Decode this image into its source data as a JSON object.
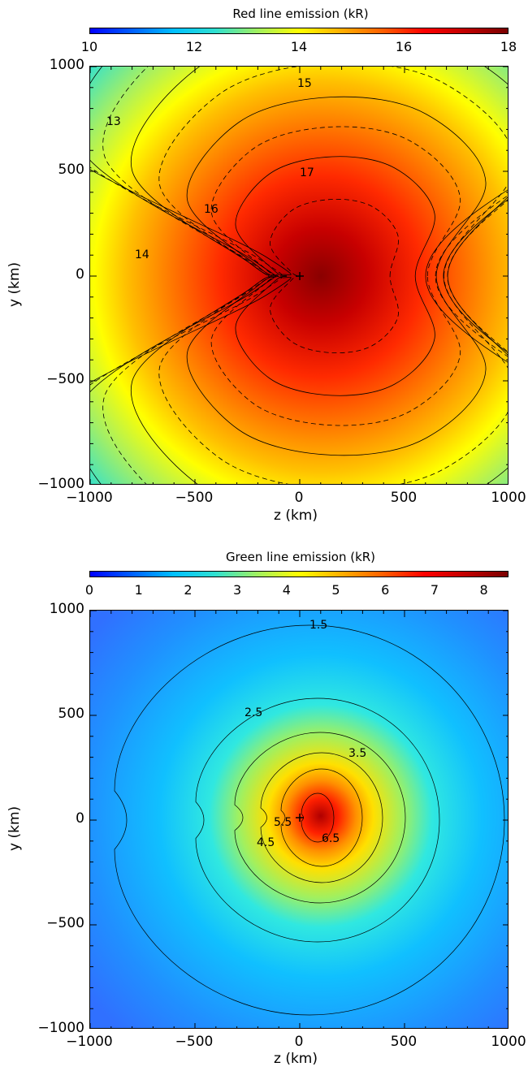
{
  "chart_data": [
    {
      "type": "heatmap",
      "title": "Red line emission (kR)",
      "xlabel": "z (km)",
      "ylabel": "y (km)",
      "xlim": [
        -1000,
        1000
      ],
      "ylim": [
        -1000,
        1000
      ],
      "colorbar_range": [
        10,
        18
      ],
      "colorbar_ticks": [
        "10",
        "12",
        "14",
        "16",
        "18"
      ],
      "x_ticks": [
        "−1000",
        "−500",
        "0",
        "500",
        "1000"
      ],
      "y_ticks": [
        "1000",
        "500",
        "0",
        "−500",
        "−1000"
      ],
      "contour_levels": [
        13,
        13.5,
        14,
        14.5,
        15,
        15.5,
        16,
        16.5,
        17,
        17.5
      ],
      "contour_labels": [
        "13",
        "14",
        "15",
        "16",
        "17"
      ],
      "marker": [
        0,
        0
      ]
    },
    {
      "type": "heatmap",
      "title": "Green line emission (kR)",
      "xlabel": "z (km)",
      "ylabel": "y (km)",
      "xlim": [
        -1000,
        1000
      ],
      "ylim": [
        -1000,
        1000
      ],
      "colorbar_range": [
        0,
        8.5
      ],
      "colorbar_ticks": [
        "0",
        "1",
        "2",
        "3",
        "4",
        "5",
        "6",
        "7",
        "8"
      ],
      "x_ticks": [
        "−1000",
        "−500",
        "0",
        "500",
        "1000"
      ],
      "y_ticks": [
        "1000",
        "500",
        "0",
        "−500",
        "−1000"
      ],
      "contour_levels": [
        1.5,
        2.5,
        3.5,
        4.5,
        5.5,
        6.5
      ],
      "contour_labels": [
        "1.5",
        "2.5",
        "3.5",
        "4.5",
        "5.5",
        "6.5"
      ],
      "marker": [
        0,
        0
      ]
    }
  ]
}
